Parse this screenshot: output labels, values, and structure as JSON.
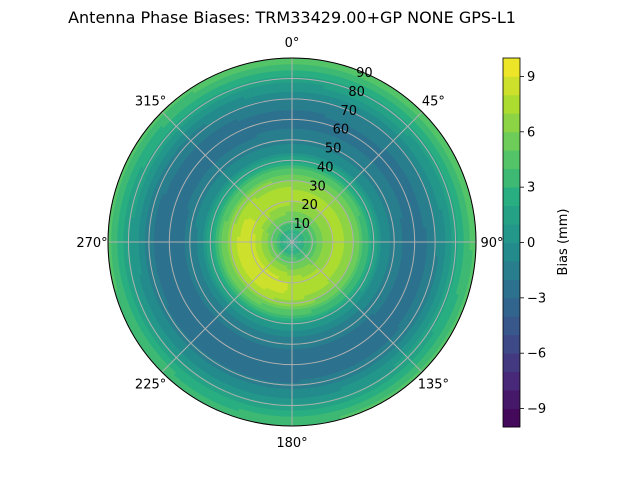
{
  "chart_data": {
    "type": "polar-contour",
    "title": "Antenna Phase Biases: TRM33429.00+GP  NONE GPS-L1",
    "angular_ticks": [
      {
        "deg": 0,
        "label": "0°"
      },
      {
        "deg": 45,
        "label": "45°"
      },
      {
        "deg": 90,
        "label": "90°"
      },
      {
        "deg": 135,
        "label": "135°"
      },
      {
        "deg": 180,
        "label": "180°"
      },
      {
        "deg": 225,
        "label": "225°"
      },
      {
        "deg": 270,
        "label": "270°"
      },
      {
        "deg": 315,
        "label": "315°"
      }
    ],
    "radial_ticks": [
      10,
      20,
      30,
      40,
      50,
      60,
      70,
      80,
      90
    ],
    "radial_range": [
      0,
      90
    ],
    "grid": true,
    "colorbar": {
      "label": "Bias (mm)",
      "range": [
        -10,
        10
      ],
      "levels": 20,
      "ticks": [
        -9,
        -6,
        -3,
        0,
        3,
        6,
        9
      ],
      "tick_labels": [
        "−9",
        "−6",
        "−3",
        "0",
        "3",
        "6",
        "9"
      ],
      "position": "right"
    },
    "radial_profile": {
      "zenith_deg": [
        0,
        5,
        10,
        15,
        20,
        25,
        30,
        35,
        40,
        45,
        50,
        55,
        60,
        65,
        70,
        75,
        80,
        85,
        90
      ],
      "bias_mm": [
        1.5,
        2.5,
        4.5,
        6.0,
        7.0,
        7.0,
        6.0,
        4.0,
        1.5,
        -0.5,
        -1.5,
        -2.2,
        -2.5,
        -2.2,
        -1.5,
        0.0,
        1.5,
        3.0,
        4.5
      ]
    },
    "hotspot": {
      "azimuth_deg": 240,
      "zenith_deg": 22,
      "bias_mm": 8.5
    }
  }
}
